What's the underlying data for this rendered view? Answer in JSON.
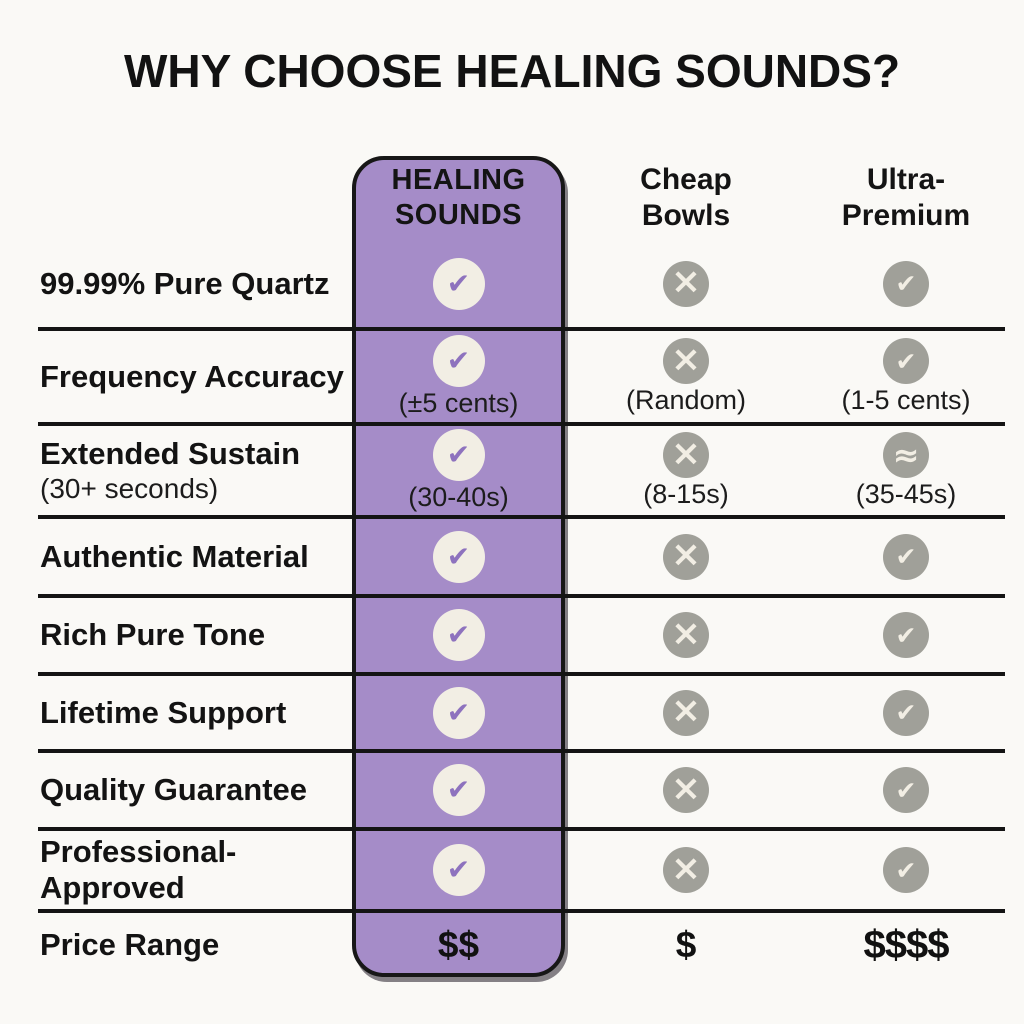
{
  "title": "WHY CHOOSE HEALING SOUNDS?",
  "columns": {
    "healing": {
      "label": "HEALING\nSOUNDS"
    },
    "cheap": {
      "label": "Cheap\nBowls"
    },
    "ultra": {
      "label": "Ultra-\nPremium"
    }
  },
  "colors": {
    "background": "#faf9f6",
    "accent_purple": "#a58cc8",
    "circle_cream": "#f2eee4",
    "icon_gray": "#a0a099",
    "check_purple": "#8e72be",
    "ink": "#141414"
  },
  "rows": [
    {
      "label": "99.99% Pure Quartz",
      "sublabel": "",
      "cells": {
        "healing": {
          "icon": "check",
          "glyph": "✔",
          "note": ""
        },
        "cheap": {
          "icon": "cross",
          "glyph": "×",
          "note": ""
        },
        "ultra": {
          "icon": "check",
          "glyph": "✔",
          "note": ""
        }
      }
    },
    {
      "label": "Frequency Accuracy",
      "sublabel": "",
      "cells": {
        "healing": {
          "icon": "check",
          "glyph": "✔",
          "note": "(±5 cents)"
        },
        "cheap": {
          "icon": "cross",
          "glyph": "×",
          "note": "(Random)"
        },
        "ultra": {
          "icon": "check",
          "glyph": "✔",
          "note": "(1-5 cents)"
        }
      }
    },
    {
      "label": "Extended Sustain",
      "sublabel": "(30+ seconds)",
      "cells": {
        "healing": {
          "icon": "check",
          "glyph": "✔",
          "note": "(30-40s)"
        },
        "cheap": {
          "icon": "cross",
          "glyph": "×",
          "note": "(8-15s)"
        },
        "ultra": {
          "icon": "approx",
          "glyph": "≈",
          "note": "(35-45s)"
        }
      }
    },
    {
      "label": "Authentic Material",
      "sublabel": "",
      "cells": {
        "healing": {
          "icon": "check",
          "glyph": "✔",
          "note": ""
        },
        "cheap": {
          "icon": "cross",
          "glyph": "×",
          "note": ""
        },
        "ultra": {
          "icon": "check",
          "glyph": "✔",
          "note": ""
        }
      }
    },
    {
      "label": "Rich Pure Tone",
      "sublabel": "",
      "cells": {
        "healing": {
          "icon": "check",
          "glyph": "✔",
          "note": ""
        },
        "cheap": {
          "icon": "cross",
          "glyph": "×",
          "note": ""
        },
        "ultra": {
          "icon": "check",
          "glyph": "✔",
          "note": ""
        }
      }
    },
    {
      "label": "Lifetime Support",
      "sublabel": "",
      "cells": {
        "healing": {
          "icon": "check",
          "glyph": "✔",
          "note": ""
        },
        "cheap": {
          "icon": "cross",
          "glyph": "×",
          "note": ""
        },
        "ultra": {
          "icon": "check",
          "glyph": "✔",
          "note": ""
        }
      }
    },
    {
      "label": "Quality Guarantee",
      "sublabel": "",
      "cells": {
        "healing": {
          "icon": "check",
          "glyph": "✔",
          "note": ""
        },
        "cheap": {
          "icon": "cross",
          "glyph": "×",
          "note": ""
        },
        "ultra": {
          "icon": "check",
          "glyph": "✔",
          "note": ""
        }
      }
    },
    {
      "label": "Professional-Approved",
      "sublabel": "",
      "cells": {
        "healing": {
          "icon": "check",
          "glyph": "✔",
          "note": ""
        },
        "cheap": {
          "icon": "cross",
          "glyph": "×",
          "note": ""
        },
        "ultra": {
          "icon": "check",
          "glyph": "✔",
          "note": ""
        }
      }
    }
  ],
  "price_row": {
    "label": "Price Range",
    "healing": "$$",
    "cheap": "$",
    "ultra": "$$$$"
  }
}
